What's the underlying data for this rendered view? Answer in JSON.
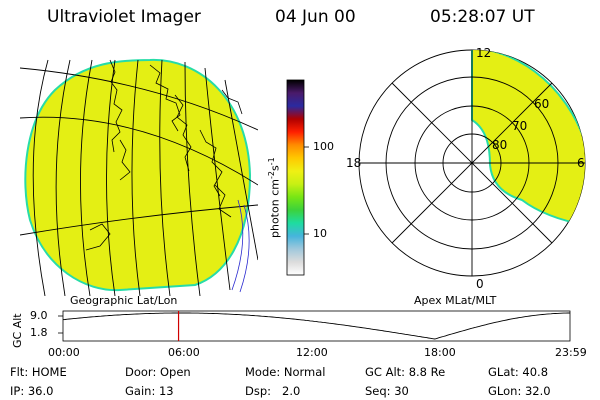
{
  "header": {
    "instrument": "Ultraviolet Imager",
    "date": "04 Jun 00",
    "time": "05:28:07 UT"
  },
  "colors": {
    "fill": "#e4ef14",
    "edge": "#27dca8",
    "line": "#000000",
    "marker": "#d00000"
  },
  "geo_panel": {
    "label": "Geographic Lat/Lon"
  },
  "apex_panel": {
    "label": "Apex MLat/MLT",
    "mlt_labels": {
      "top": "12",
      "bottom": "0",
      "left": "18",
      "right": "6"
    },
    "lat_labels": [
      "80",
      "70",
      "60"
    ]
  },
  "colorbar": {
    "unit_label": "photon cm",
    "unit_exp1": "-2",
    "unit_mid": "s",
    "unit_exp2": "-1",
    "ticks": [
      "100",
      "10"
    ],
    "stops": [
      "#000000",
      "#4a1a6a",
      "#2a2aa0",
      "#b00000",
      "#ff2000",
      "#ff8c00",
      "#ffc800",
      "#f0f014",
      "#c8f014",
      "#78e614",
      "#3cd23c",
      "#1edca0",
      "#46b4dc",
      "#a0c8dc",
      "#dcdcdc",
      "#ffffff"
    ]
  },
  "altitude_plot": {
    "axis_label": "GC Alt",
    "y_ticks": [
      "9.0",
      "1.8"
    ],
    "x_ticks": [
      "00:00",
      "06:00",
      "12:00",
      "18:00",
      "23:59"
    ],
    "x_range_hours": [
      0,
      24
    ],
    "y_range_re": [
      1.8,
      9.0
    ],
    "current_time_hours": 5.47
  },
  "status": {
    "flt_label": "Flt:",
    "flt_value": "HOME",
    "ip_label": "IP:",
    "ip_value": "36.0",
    "door_label": "Door:",
    "door_value": "Open",
    "gain_label": "Gain:",
    "gain_value": "13",
    "mode_label": "Mode:",
    "mode_value": "Normal",
    "dsp_label": "Dsp:",
    "dsp_value": "2.0",
    "gcalt_label": "GC Alt:",
    "gcalt_value": "8.8 Re",
    "seq_label": "Seq:",
    "seq_value": "30",
    "glat_label": "GLat:",
    "glat_value": "40.8",
    "glon_label": "GLon:",
    "glon_value": "32.0"
  }
}
